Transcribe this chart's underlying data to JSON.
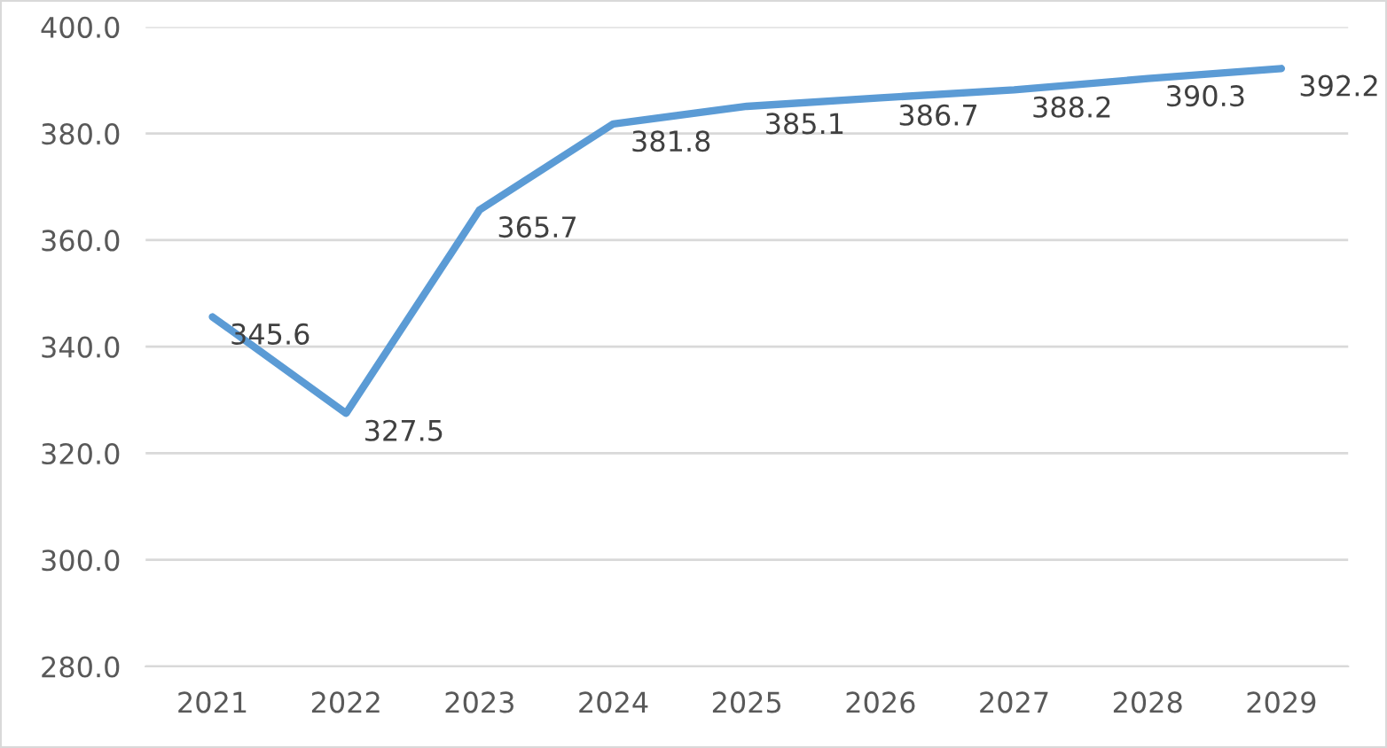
{
  "chart_data": {
    "type": "line",
    "categories": [
      "2021",
      "2022",
      "2023",
      "2024",
      "2025",
      "2026",
      "2027",
      "2028",
      "2029"
    ],
    "values": [
      345.6,
      327.5,
      365.7,
      381.8,
      385.1,
      386.7,
      388.2,
      390.3,
      392.2
    ],
    "color": "#5b9bd5",
    "ylim": [
      280,
      400
    ],
    "yticks": [
      {
        "value": 280,
        "label": "280.0"
      },
      {
        "value": 300,
        "label": "300.0"
      },
      {
        "value": 320,
        "label": "320.0"
      },
      {
        "value": 340,
        "label": "340.0"
      },
      {
        "value": 360,
        "label": "360.0"
      },
      {
        "value": 380,
        "label": "380.0"
      },
      {
        "value": 400,
        "label": "400.0"
      }
    ],
    "grid": "y",
    "data_labels": true
  }
}
